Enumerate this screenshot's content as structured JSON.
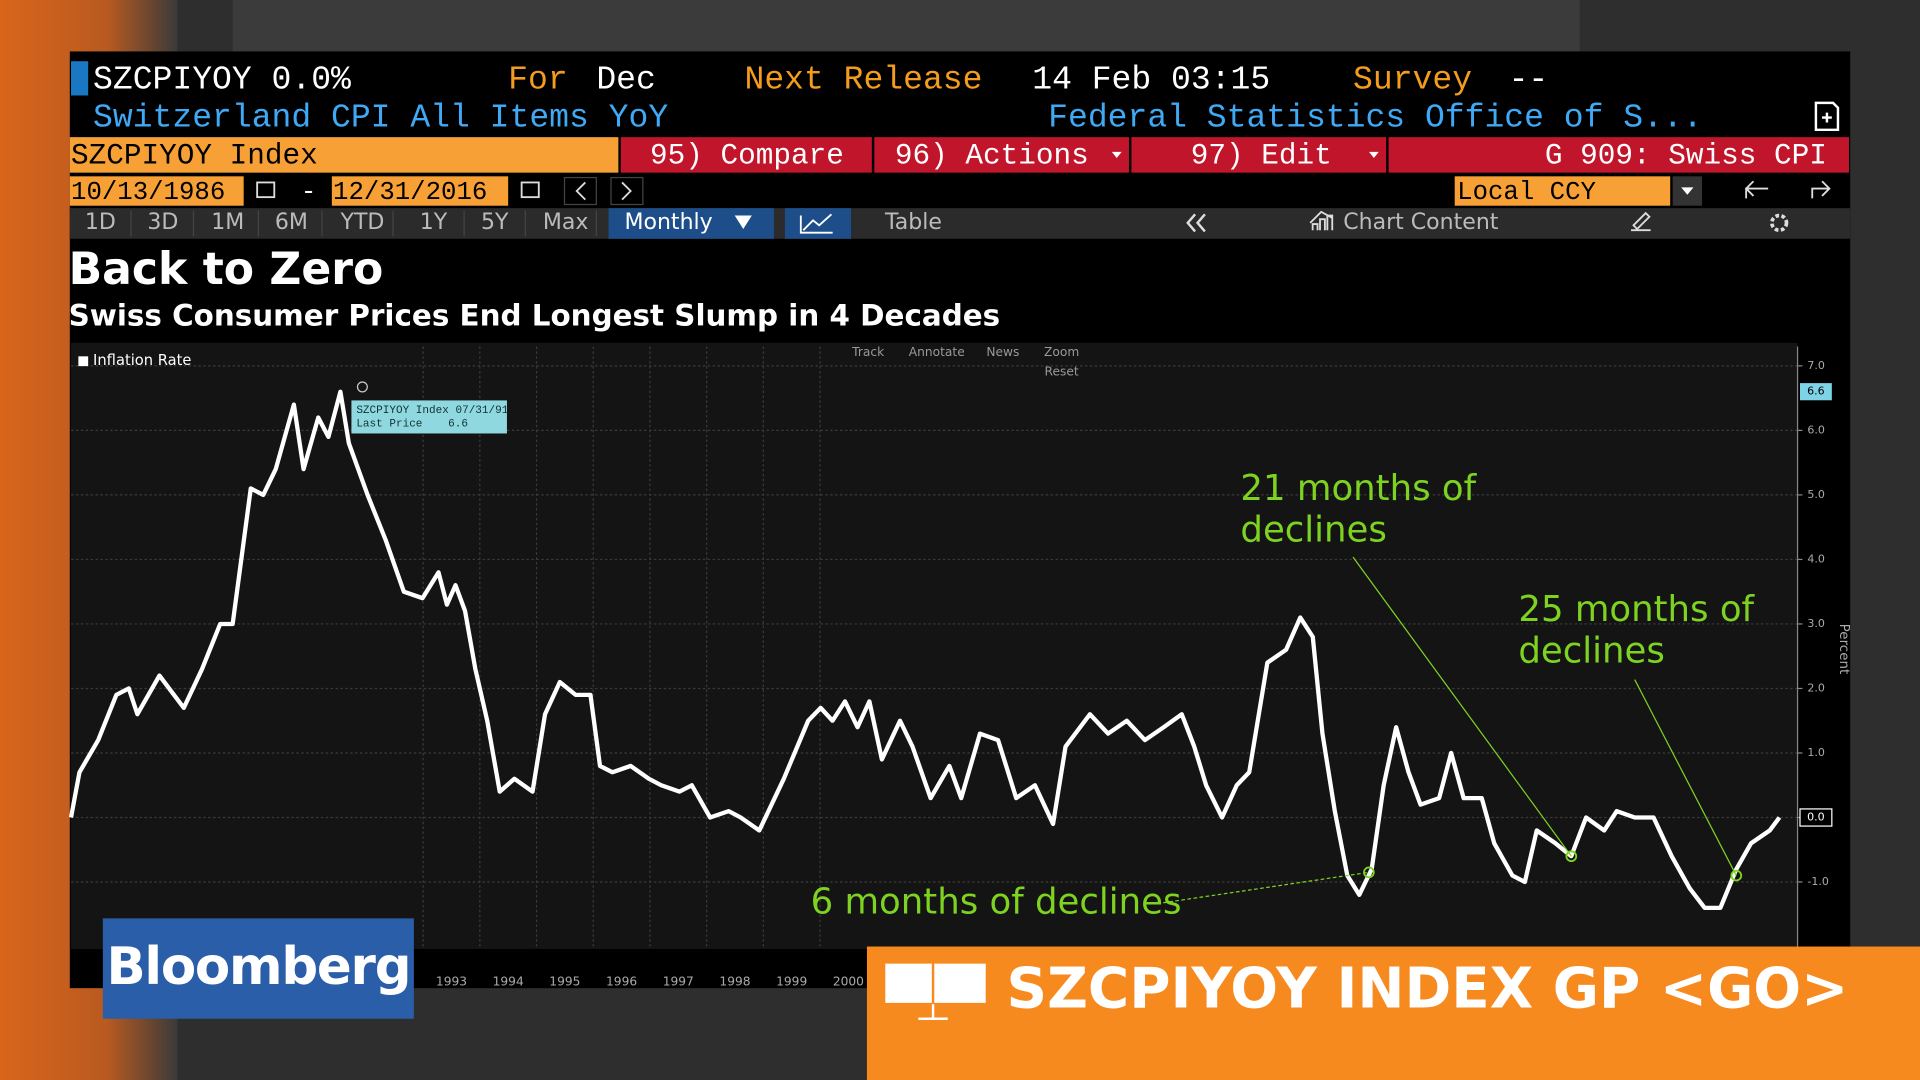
{
  "header": {
    "ticker": "SZCPIYOY 0.0%",
    "for_label": "For",
    "for_value": "Dec",
    "next_release_label": "Next Release",
    "next_release_value": "14 Feb 03:15",
    "survey_label": "Survey",
    "survey_value": "--",
    "description": "Switzerland CPI All Items YoY",
    "source": "Federal Statistics Office of S..."
  },
  "toolbar": {
    "security": "SZCPIYOY Index",
    "compare": "95) Compare",
    "actions": "96) Actions",
    "edit": "97) Edit",
    "chart_id": "G 909: Swiss CPI",
    "start_date": "10/13/1986",
    "date_separator": "-",
    "end_date": "12/31/2016",
    "currency": "Local CCY",
    "periods": [
      "1D",
      "3D",
      "1M",
      "6M",
      "YTD",
      "1Y",
      "5Y",
      "Max"
    ],
    "frequency": "Monthly",
    "table": "Table",
    "chart_content": "Chart Content"
  },
  "chart_tools": [
    "Track",
    "Annotate",
    "News",
    "Zoom",
    "Reset"
  ],
  "chart_data": {
    "type": "line",
    "title": "Back to Zero",
    "subtitle": "Swiss Consumer Prices End Longest Slump in 4 Decades",
    "y_label": "Percent",
    "series": [
      {
        "name": "Inflation Rate",
        "color": "#ffffff",
        "x": [
          1986.79,
          1986.94,
          1987.27,
          1987.59,
          1987.81,
          1987.96,
          1988.35,
          1988.78,
          1989.1,
          1989.42,
          1989.64,
          1989.96,
          1990.18,
          1990.4,
          1990.72,
          1990.89,
          1991.15,
          1991.33,
          1991.54,
          1991.69,
          1992.02,
          1992.34,
          1992.66,
          1992.99,
          1993.27,
          1993.42,
          1993.57,
          1993.74,
          1993.92,
          1994.13,
          1994.35,
          1994.61,
          1994.93,
          1995.15,
          1995.41,
          1995.69,
          1995.95,
          1996.12,
          1996.34,
          1996.66,
          1996.98,
          1997.2,
          1997.52,
          1997.74,
          1998.06,
          1998.39,
          1998.6,
          1998.93,
          1999.36,
          1999.79,
          2000.01,
          2000.22,
          2000.44,
          2000.66,
          2000.87,
          2001.09,
          2001.41,
          2001.63,
          2001.95,
          2002.28,
          2002.49,
          2002.82,
          2003.14,
          2003.46,
          2003.79,
          2004.11,
          2004.33,
          2004.76,
          2005.08,
          2005.41,
          2005.73,
          2006.06,
          2006.38,
          2006.6,
          2006.81,
          2007.09,
          2007.35,
          2007.57,
          2007.89,
          2008.22,
          2008.47,
          2008.69,
          2008.86,
          2009.08,
          2009.3,
          2009.51,
          2009.73,
          2009.94,
          2010.16,
          2010.38,
          2010.59,
          2010.92,
          2011.13,
          2011.35,
          2011.67,
          2011.89,
          2012.21,
          2012.43,
          2012.64,
          2012.97,
          2013.25,
          2013.51,
          2013.83,
          2014.05,
          2014.37,
          2014.7,
          2015.02,
          2015.34,
          2015.6,
          2015.88,
          2016.16,
          2016.42,
          2016.75,
          2016.92
        ],
        "values": [
          0.0,
          0.7,
          1.2,
          1.9,
          2.0,
          1.6,
          2.2,
          1.7,
          2.3,
          3.0,
          3.0,
          5.1,
          5.0,
          5.4,
          6.4,
          5.4,
          6.2,
          5.9,
          6.6,
          5.8,
          5.0,
          4.3,
          3.5,
          3.4,
          3.8,
          3.3,
          3.6,
          3.2,
          2.3,
          1.5,
          0.4,
          0.6,
          0.4,
          1.6,
          2.1,
          1.9,
          1.9,
          0.8,
          0.7,
          0.8,
          0.6,
          0.5,
          0.4,
          0.5,
          0.0,
          0.1,
          0.0,
          -0.2,
          0.6,
          1.5,
          1.7,
          1.5,
          1.8,
          1.4,
          1.8,
          0.9,
          1.5,
          1.1,
          0.3,
          0.8,
          0.3,
          1.3,
          1.2,
          0.3,
          0.5,
          -0.1,
          1.1,
          1.6,
          1.3,
          1.5,
          1.2,
          1.4,
          1.6,
          1.1,
          0.5,
          0.0,
          0.5,
          0.7,
          2.4,
          2.6,
          3.1,
          2.8,
          1.3,
          0.1,
          -0.9,
          -1.2,
          -0.8,
          0.5,
          1.4,
          0.7,
          0.2,
          0.3,
          1.0,
          0.3,
          0.3,
          -0.4,
          -0.9,
          -1.0,
          -0.2,
          -0.4,
          -0.6,
          0.0,
          -0.2,
          0.1,
          0.0,
          0.0,
          -0.6,
          -1.1,
          -1.4,
          -1.4,
          -0.8,
          -0.4,
          -0.2,
          0.0
        ]
      }
    ],
    "xlim": [
      1986.79,
      2017.24
    ],
    "ylim": [
      -2,
      7.3
    ],
    "xticks": [
      1993,
      1994,
      1995,
      1996,
      1997,
      1998,
      1999,
      2000
    ],
    "yticks": [
      {
        "value": -1,
        "label": "-1.0"
      },
      {
        "value": 0,
        "label": "0.0"
      },
      {
        "value": 1,
        "label": "1.0"
      },
      {
        "value": 2,
        "label": "2.0"
      },
      {
        "value": 3,
        "label": "3.0"
      },
      {
        "value": 4,
        "label": "4.0"
      },
      {
        "value": 5,
        "label": "5.0"
      },
      {
        "value": 6,
        "label": "6.0"
      },
      {
        "value": 7,
        "label": "7.0"
      }
    ],
    "grid": true,
    "price_tags": [
      {
        "value": 6.6,
        "label": "6.6"
      },
      {
        "value": 0,
        "label": "0.0"
      }
    ],
    "tooltip": {
      "title": "SZCPIYOY Index 07/31/91",
      "label": "Last Price",
      "value": 6.6
    },
    "annotations": [
      {
        "lines": [
          "21 months of",
          "declines"
        ],
        "x": 2013.25,
        "y": -0.6
      },
      {
        "lines": [
          "25 months of",
          "declines"
        ],
        "x": 2016.16,
        "y": -0.9
      },
      {
        "lines": [
          "6 months of declines"
        ],
        "x": 2009.68,
        "y": -0.85
      }
    ]
  },
  "overlay": {
    "brand": "Bloomberg",
    "command": "SZCPIYOY INDEX GP <GO>"
  }
}
